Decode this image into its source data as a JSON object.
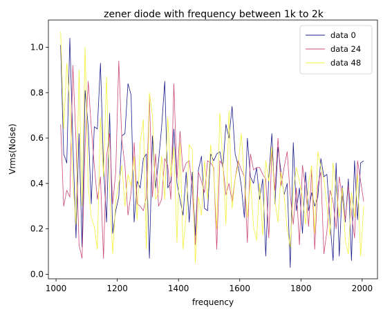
{
  "chart_data": {
    "type": "line",
    "title": "zener diode with frequency between 1k to 2k",
    "xlabel": "frequency",
    "ylabel": "Vrms(Noise)",
    "xlim": [
      975,
      2050
    ],
    "ylim": [
      -0.02,
      1.12
    ],
    "x_ticks": [
      1000,
      1200,
      1400,
      1600,
      1800,
      2000
    ],
    "y_ticks": [
      0.0,
      0.2,
      0.4,
      0.6,
      0.8,
      1.0
    ],
    "x_tick_labels": [
      "1000",
      "1200",
      "1400",
      "1600",
      "1800",
      "2000"
    ],
    "y_tick_labels": [
      "0.0",
      "0.2",
      "0.4",
      "0.6",
      "0.8",
      "1.0"
    ],
    "legend_position": "top-right",
    "grid": false,
    "x": [
      1015,
      1025,
      1035,
      1045,
      1055,
      1065,
      1075,
      1085,
      1095,
      1105,
      1115,
      1125,
      1135,
      1145,
      1155,
      1165,
      1175,
      1185,
      1195,
      1205,
      1215,
      1225,
      1235,
      1245,
      1255,
      1265,
      1275,
      1285,
      1295,
      1305,
      1315,
      1325,
      1335,
      1345,
      1355,
      1365,
      1375,
      1385,
      1395,
      1405,
      1415,
      1425,
      1435,
      1445,
      1455,
      1465,
      1475,
      1485,
      1495,
      1505,
      1515,
      1525,
      1535,
      1545,
      1555,
      1565,
      1575,
      1585,
      1595,
      1605,
      1615,
      1625,
      1635,
      1645,
      1655,
      1665,
      1675,
      1685,
      1695,
      1705,
      1715,
      1725,
      1735,
      1745,
      1755,
      1765,
      1775,
      1785,
      1795,
      1805,
      1815,
      1825,
      1835,
      1845,
      1855,
      1865,
      1875,
      1885,
      1895,
      1905,
      1915,
      1925,
      1935,
      1945,
      1955,
      1965,
      1975,
      1985,
      1995,
      2005
    ],
    "series": [
      {
        "name": "data 0",
        "color": "#1a1a8c",
        "values": [
          1.01,
          0.53,
          0.49,
          1.04,
          0.58,
          0.16,
          0.62,
          0.12,
          0.81,
          0.65,
          0.31,
          0.65,
          0.64,
          0.93,
          0.48,
          0.23,
          0.71,
          0.18,
          0.28,
          0.34,
          0.61,
          0.62,
          0.84,
          0.79,
          0.23,
          0.41,
          0.38,
          0.51,
          0.53,
          0.07,
          0.61,
          0.38,
          0.5,
          0.65,
          0.85,
          0.38,
          0.41,
          0.64,
          0.4,
          0.33,
          0.26,
          0.45,
          0.23,
          0.45,
          0.17,
          0.46,
          0.52,
          0.29,
          0.28,
          0.53,
          0.5,
          0.53,
          0.54,
          0.47,
          0.66,
          0.6,
          0.74,
          0.53,
          0.48,
          0.39,
          0.25,
          0.6,
          0.43,
          0.4,
          0.47,
          0.33,
          0.42,
          0.08,
          0.43,
          0.62,
          0.31,
          0.56,
          0.45,
          0.35,
          0.4,
          0.03,
          0.58,
          0.28,
          0.38,
          0.18,
          0.45,
          0.28,
          0.36,
          0.3,
          0.34,
          0.51,
          0.43,
          0.44,
          0.23,
          0.06,
          0.49,
          0.08,
          0.39,
          0.23,
          0.42,
          0.06,
          0.5,
          0.24,
          0.49,
          0.5
        ]
      },
      {
        "name": "data 24",
        "color": "#cc4778",
        "values": [
          0.66,
          0.3,
          0.37,
          0.34,
          0.92,
          0.59,
          0.13,
          0.07,
          0.56,
          0.85,
          0.65,
          0.48,
          0.33,
          0.43,
          0.07,
          0.52,
          0.62,
          0.31,
          0.45,
          0.94,
          0.59,
          0.48,
          0.26,
          0.36,
          0.58,
          0.31,
          0.3,
          0.28,
          0.34,
          0.78,
          0.34,
          0.53,
          0.3,
          0.33,
          0.51,
          0.48,
          0.33,
          0.84,
          0.42,
          0.63,
          0.45,
          0.49,
          0.5,
          0.38,
          0.13,
          0.45,
          0.41,
          0.36,
          0.5,
          0.49,
          0.47,
          0.11,
          0.5,
          0.48,
          0.35,
          0.4,
          0.32,
          0.42,
          0.5,
          0.46,
          0.43,
          0.14,
          0.53,
          0.46,
          0.47,
          0.47,
          0.44,
          0.42,
          0.16,
          0.54,
          0.37,
          0.6,
          0.39,
          0.47,
          0.54,
          0.35,
          0.22,
          0.38,
          0.13,
          0.48,
          0.38,
          0.21,
          0.46,
          0.11,
          0.39,
          0.45,
          0.09,
          0.19,
          0.37,
          0.32,
          0.2,
          0.43,
          0.34,
          0.24,
          0.39,
          0.27,
          0.16,
          0.5,
          0.41,
          0.32
        ]
      },
      {
        "name": "data 48",
        "color": "#f2f23a",
        "values": [
          1.07,
          0.64,
          0.93,
          0.75,
          0.41,
          0.22,
          0.9,
          0.3,
          1.0,
          0.39,
          0.25,
          0.21,
          0.11,
          0.69,
          0.43,
          0.87,
          0.37,
          0.09,
          0.32,
          0.4,
          0.48,
          0.3,
          0.44,
          0.39,
          0.52,
          0.24,
          0.58,
          0.68,
          0.11,
          0.8,
          0.7,
          0.33,
          0.36,
          0.52,
          0.33,
          0.69,
          0.43,
          0.56,
          0.14,
          0.58,
          0.11,
          0.26,
          0.57,
          0.55,
          0.05,
          0.34,
          0.26,
          0.5,
          0.33,
          0.57,
          0.45,
          0.2,
          0.71,
          0.49,
          0.22,
          0.72,
          0.29,
          0.42,
          0.48,
          0.62,
          0.42,
          0.25,
          0.42,
          0.21,
          0.15,
          0.4,
          0.17,
          0.5,
          0.41,
          0.56,
          0.32,
          0.23,
          0.45,
          0.35,
          0.2,
          0.12,
          0.37,
          0.47,
          0.41,
          0.34,
          0.22,
          0.4,
          0.48,
          0.18,
          0.54,
          0.47,
          0.42,
          0.3,
          0.17,
          0.49,
          0.38,
          0.25,
          0.38,
          0.15,
          0.09,
          0.36,
          0.25,
          0.44,
          0.08,
          0.3
        ]
      }
    ]
  }
}
